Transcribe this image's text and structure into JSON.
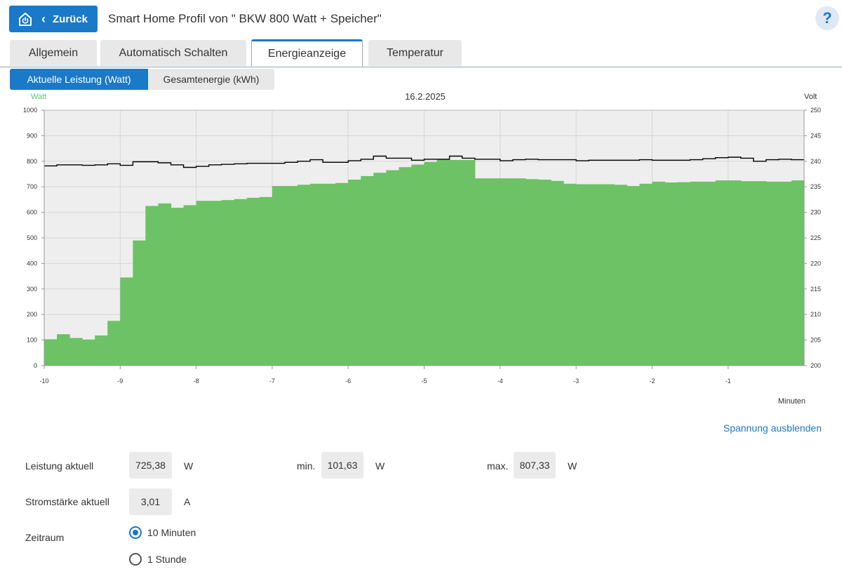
{
  "header": {
    "back_label": "Zurück",
    "title": "Smart Home Profil von \" BKW 800 Watt + Speicher\"",
    "help": "?"
  },
  "tabs": [
    {
      "label": "Allgemein",
      "active": false
    },
    {
      "label": "Automatisch Schalten",
      "active": false
    },
    {
      "label": "Energieanzeige",
      "active": true
    },
    {
      "label": "Temperatur",
      "active": false
    }
  ],
  "subtabs": [
    {
      "label": "Aktuelle Leistung (Watt)",
      "active": true
    },
    {
      "label": "Gesamtenergie (kWh)",
      "active": false
    }
  ],
  "colors": {
    "accent": "#1a79c9",
    "bar_fill": "#6cc264",
    "voltage_line": "#000000",
    "watt_label": "#6cc264",
    "plot_bg": "#eeeeee"
  },
  "chart_data": {
    "type": "area",
    "title": "16.2.2025",
    "ylabel": "Watt",
    "y2label": "Volt",
    "xlabel": "Minuten",
    "xlim": [
      -10,
      0
    ],
    "ylim": [
      0,
      1000
    ],
    "y2lim": [
      200,
      250
    ],
    "xticks": [
      -10,
      -9,
      -8,
      -7,
      -6,
      -5,
      -4,
      -3,
      -2,
      -1
    ],
    "yticks": [
      0,
      100,
      200,
      300,
      400,
      500,
      600,
      700,
      800,
      900,
      1000
    ],
    "y2ticks": [
      200,
      205,
      210,
      215,
      220,
      225,
      230,
      235,
      240,
      245,
      250
    ],
    "grid": true,
    "series": [
      {
        "name": "Watt",
        "axis": "left",
        "step": 0.1667,
        "x": [
          -10.0,
          -9.833,
          -9.667,
          -9.5,
          -9.333,
          -9.167,
          -9.0,
          -8.833,
          -8.667,
          -8.5,
          -8.333,
          -8.167,
          -8.0,
          -7.833,
          -7.667,
          -7.5,
          -7.333,
          -7.167,
          -7.0,
          -6.833,
          -6.667,
          -6.5,
          -6.333,
          -6.167,
          -6.0,
          -5.833,
          -5.667,
          -5.5,
          -5.333,
          -5.167,
          -5.0,
          -4.833,
          -4.667,
          -4.5,
          -4.333,
          -4.167,
          -4.0,
          -3.833,
          -3.667,
          -3.5,
          -3.333,
          -3.167,
          -3.0,
          -2.833,
          -2.667,
          -2.5,
          -2.333,
          -2.167,
          -2.0,
          -1.833,
          -1.667,
          -1.5,
          -1.333,
          -1.167,
          -1.0,
          -0.833,
          -0.667,
          -0.5,
          -0.333,
          -0.167
        ],
        "values": [
          103,
          123,
          108,
          102,
          118,
          175,
          345,
          490,
          625,
          635,
          618,
          628,
          645,
          645,
          648,
          652,
          657,
          660,
          703,
          703,
          708,
          712,
          712,
          715,
          728,
          742,
          755,
          765,
          777,
          787,
          797,
          807,
          805,
          805,
          733,
          733,
          733,
          733,
          730,
          728,
          723,
          712,
          710,
          710,
          710,
          708,
          703,
          712,
          720,
          717,
          718,
          720,
          720,
          725,
          725,
          722,
          722,
          720,
          720,
          725
        ]
      },
      {
        "name": "Volt",
        "axis": "right",
        "step": 0.1667,
        "x": [
          -10.0,
          -9.833,
          -9.667,
          -9.5,
          -9.333,
          -9.167,
          -9.0,
          -8.833,
          -8.667,
          -8.5,
          -8.333,
          -8.167,
          -8.0,
          -7.833,
          -7.667,
          -7.5,
          -7.333,
          -7.167,
          -7.0,
          -6.833,
          -6.667,
          -6.5,
          -6.333,
          -6.167,
          -6.0,
          -5.833,
          -5.667,
          -5.5,
          -5.333,
          -5.167,
          -5.0,
          -4.833,
          -4.667,
          -4.5,
          -4.333,
          -4.167,
          -4.0,
          -3.833,
          -3.667,
          -3.5,
          -3.333,
          -3.167,
          -3.0,
          -2.833,
          -2.667,
          -2.5,
          -2.333,
          -2.167,
          -2.0,
          -1.833,
          -1.667,
          -1.5,
          -1.333,
          -1.167,
          -1.0,
          -0.833,
          -0.667,
          -0.5,
          -0.333,
          -0.167
        ],
        "values": [
          239.1,
          239.3,
          239.3,
          239.2,
          239.3,
          239.5,
          239.2,
          239.9,
          239.9,
          239.7,
          239.3,
          238.8,
          239.0,
          239.3,
          239.4,
          239.5,
          239.6,
          239.6,
          239.6,
          239.8,
          240.0,
          240.3,
          239.8,
          239.8,
          240.1,
          240.4,
          241.0,
          240.6,
          240.6,
          240.2,
          240.4,
          240.4,
          241.0,
          240.6,
          240.4,
          240.4,
          240.1,
          240.3,
          240.4,
          240.3,
          240.3,
          240.3,
          240.1,
          240.2,
          240.2,
          240.2,
          240.2,
          240.3,
          240.2,
          240.2,
          240.2,
          240.3,
          240.5,
          240.7,
          240.8,
          240.6,
          240.0,
          240.3,
          240.4,
          240.3
        ]
      }
    ]
  },
  "spannung_link": "Spannung ausblenden",
  "stats": {
    "leistung_label": "Leistung aktuell",
    "leistung_value": "725,38",
    "leistung_unit": "W",
    "min_label": "min.",
    "min_value": "101,63",
    "min_unit": "W",
    "max_label": "max.",
    "max_value": "807,33",
    "max_unit": "W",
    "strom_label": "Stromstärke aktuell",
    "strom_value": "3,01",
    "strom_unit": "A"
  },
  "zeitraum": {
    "label": "Zeitraum",
    "options": [
      {
        "label": "10 Minuten",
        "checked": true
      },
      {
        "label": "1 Stunde",
        "checked": false
      }
    ]
  }
}
